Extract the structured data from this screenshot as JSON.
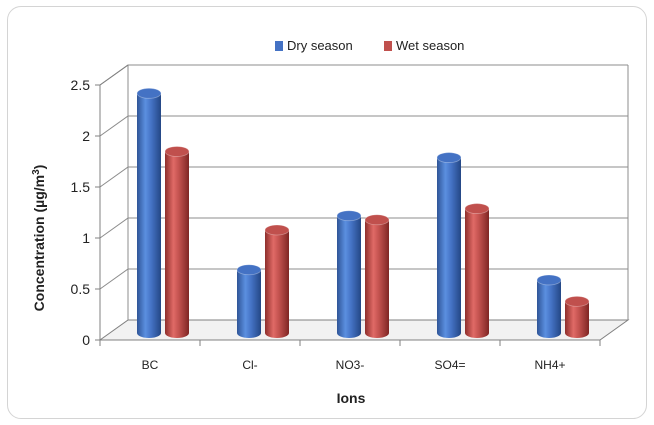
{
  "chart_data": {
    "type": "bar",
    "categories": [
      "BC",
      "Cl-",
      "NO3-",
      "SO4=",
      "NH4+"
    ],
    "series": [
      {
        "name": "Dry season",
        "values": [
          2.35,
          0.62,
          1.15,
          1.72,
          0.52
        ],
        "color": "#4472c4"
      },
      {
        "name": "Wet season",
        "values": [
          1.78,
          1.01,
          1.11,
          1.22,
          0.31
        ],
        "color": "#c0504d"
      }
    ],
    "title": "",
    "xlabel": "Ions",
    "ylabel_main": "Concentration  (µg/m",
    "ylabel_sup": "3",
    "ylabel_end": ")",
    "ylim": [
      0,
      2.5
    ],
    "yticks": [
      "0",
      "0.5",
      "1",
      "1.5",
      "2",
      "2.5"
    ],
    "grid": true,
    "legend_position": "top-center"
  }
}
